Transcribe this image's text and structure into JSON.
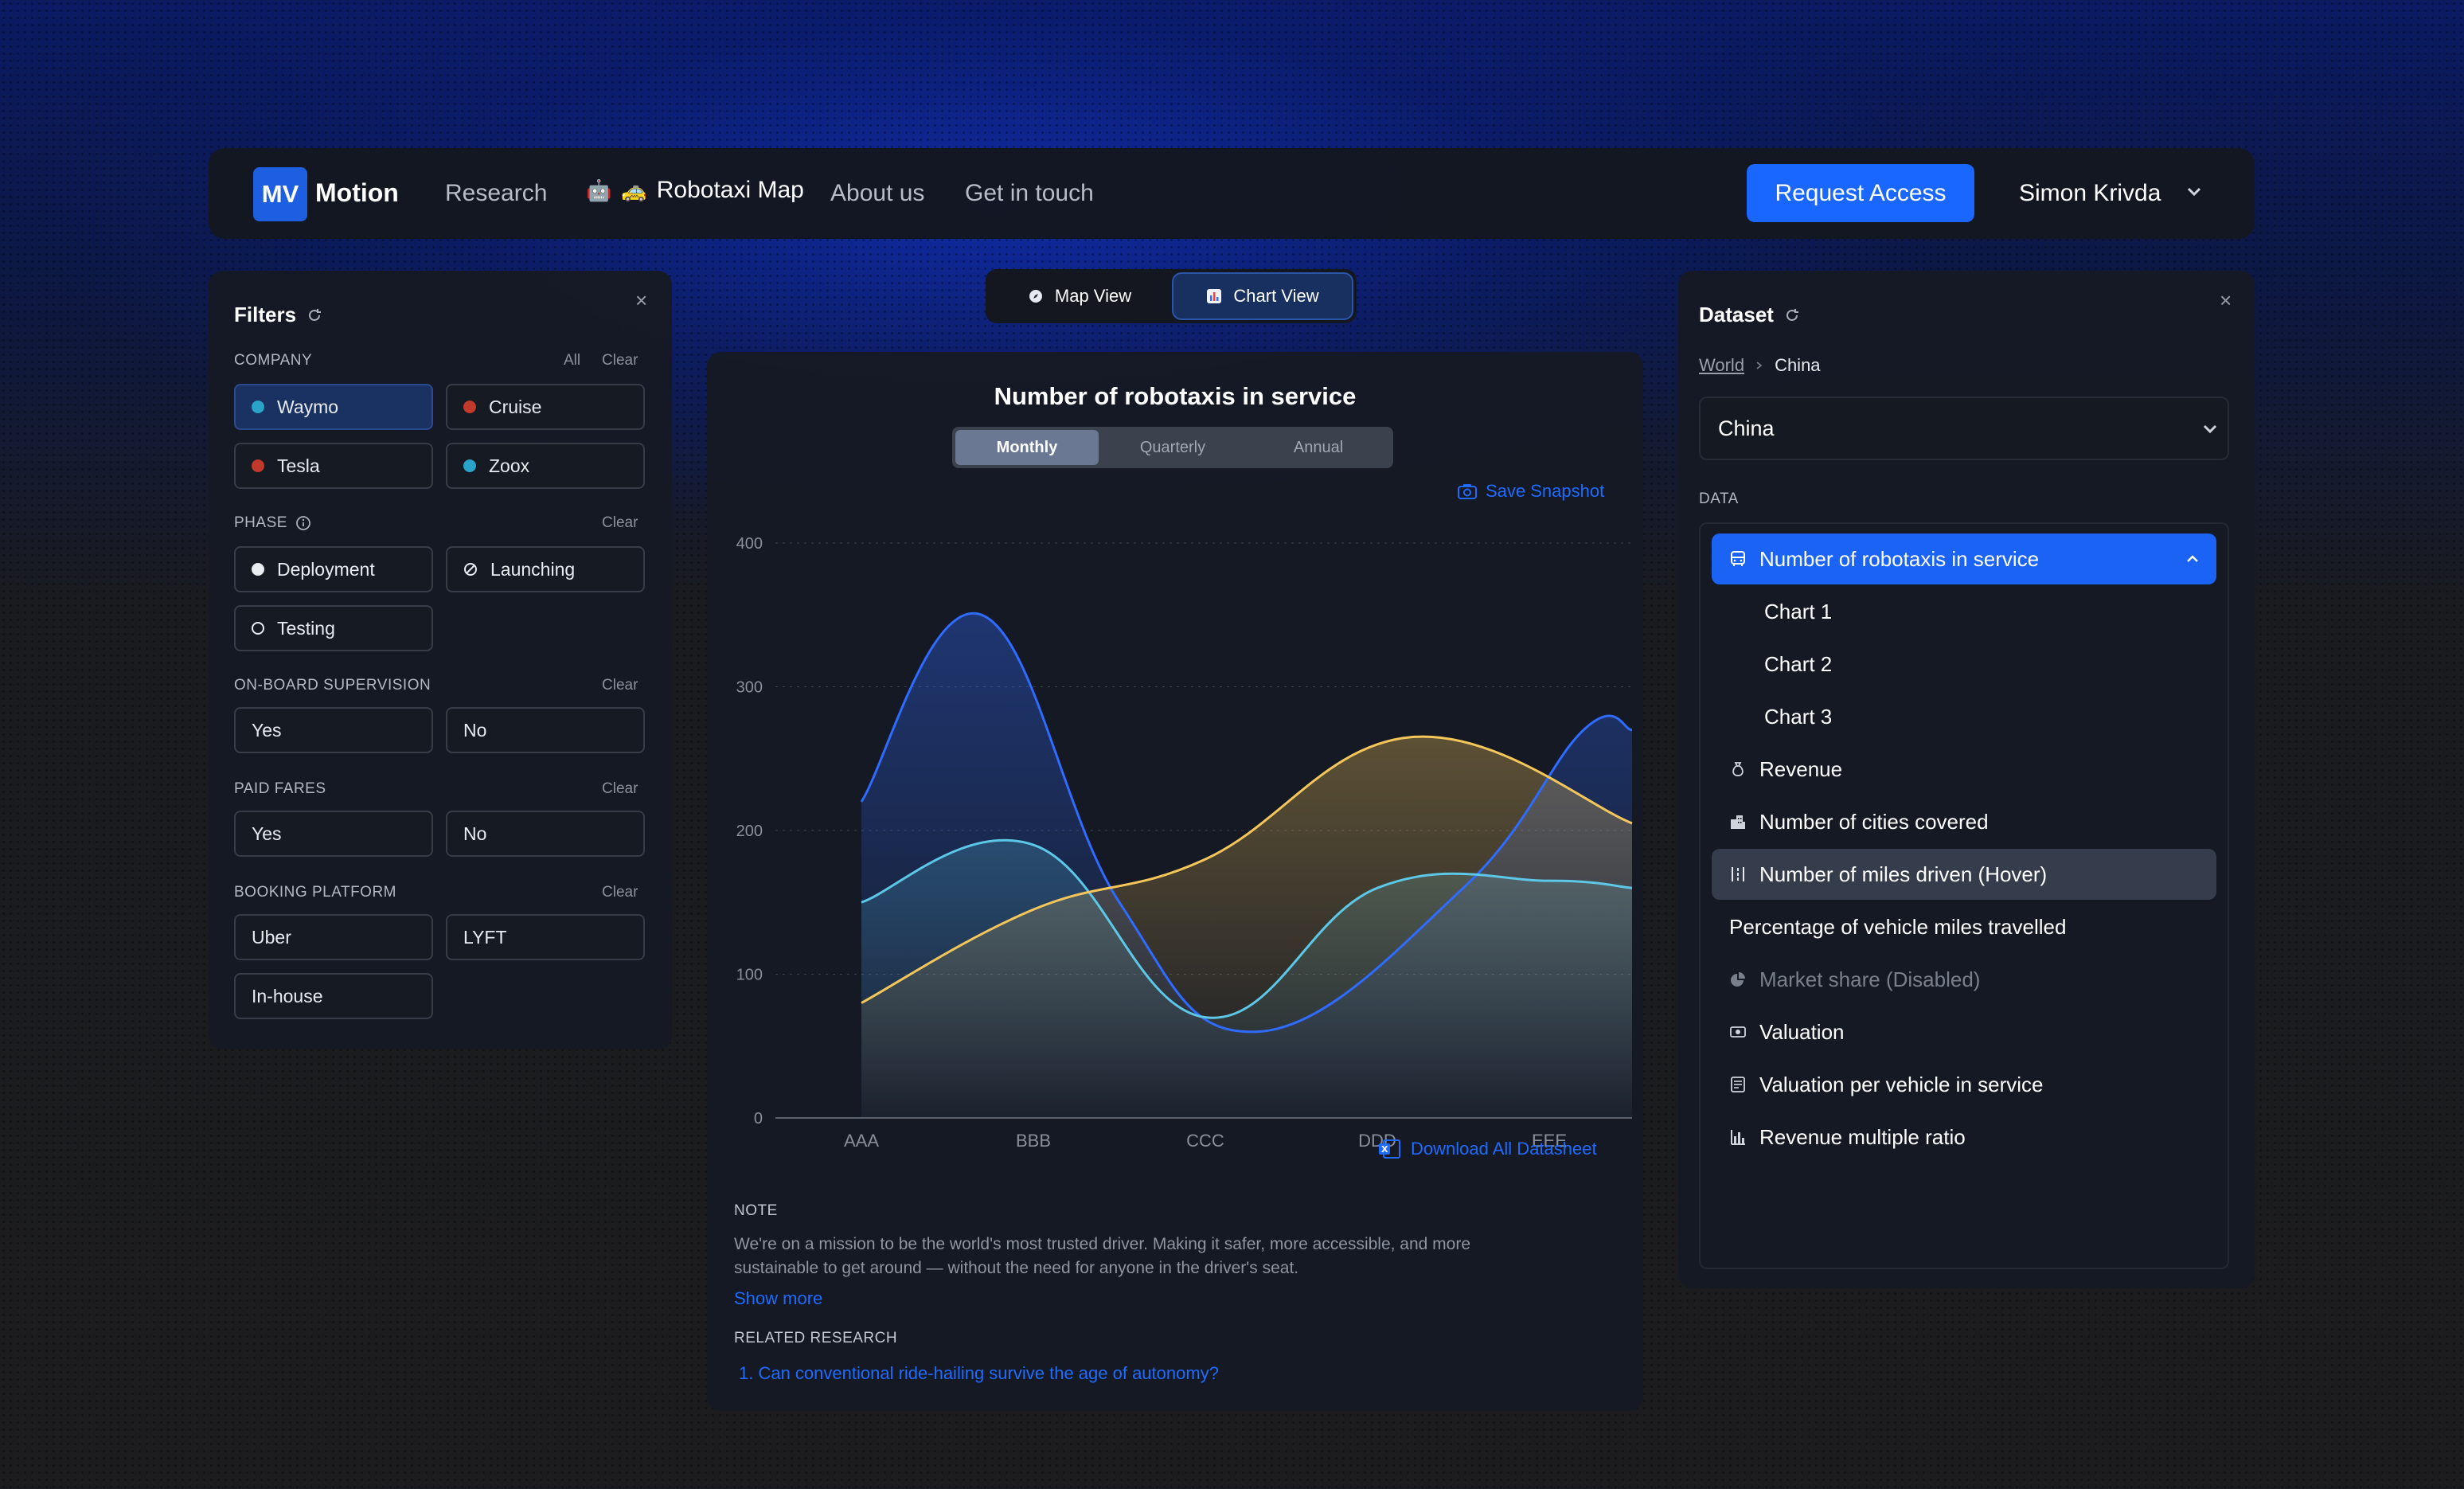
{
  "nav": {
    "logo_badge": "MV",
    "logo_text": "Motion",
    "links": [
      "Research",
      "Robotaxi Map",
      "About us",
      "Get in touch"
    ],
    "cta": "Request Access",
    "user": "Simon Krivda"
  },
  "filters": {
    "title": "Filters",
    "company": {
      "label": "COMPANY",
      "all": "All",
      "clear": "Clear",
      "options": [
        {
          "name": "Waymo",
          "color": "#2aa3c8",
          "selected": true
        },
        {
          "name": "Cruise",
          "color": "#c0392b"
        },
        {
          "name": "Tesla",
          "color": "#c0392b"
        },
        {
          "name": "Zoox",
          "color": "#2aa3c8"
        }
      ]
    },
    "phase": {
      "label": "PHASE",
      "clear": "Clear",
      "options": [
        "Deployment",
        "Launching",
        "Testing"
      ]
    },
    "supervision": {
      "label": "ON-BOARD SUPERVISION",
      "clear": "Clear",
      "options": [
        "Yes",
        "No"
      ]
    },
    "fares": {
      "label": "PAID FARES",
      "clear": "Clear",
      "options": [
        "Yes",
        "No"
      ]
    },
    "booking": {
      "label": "BOOKING PLATFORM",
      "clear": "Clear",
      "options": [
        "Uber",
        "LYFT",
        "In-house"
      ]
    }
  },
  "view_toggle": {
    "map": "Map View",
    "chart": "Chart View",
    "active": "chart"
  },
  "chart_panel": {
    "periods": [
      "Monthly",
      "Quarterly",
      "Annual"
    ],
    "active_period": "Monthly",
    "save_snapshot": "Save Snapshot",
    "download": "Download All Datasheet",
    "note_label": "NOTE",
    "note_text": "We're on a mission to be the world's most trusted driver. Making it safer, more accessible, and more sustainable to get around — without the need for anyone in the driver's seat.",
    "show_more": "Show more",
    "related_label": "RELATED RESEARCH",
    "related_item": "1.  Can conventional ride-hailing survive the age of autonomy?"
  },
  "chart_data": {
    "type": "area",
    "title": "Number of robotaxis in service",
    "categories": [
      "AAA",
      "BBB",
      "CCC",
      "DDD",
      "EEE"
    ],
    "yticks": [
      0,
      100,
      200,
      300,
      400
    ],
    "ylim": [
      0,
      400
    ],
    "grid": true,
    "series": [
      {
        "color": "#2f6bff",
        "x": [
          0,
          0.7,
          1.5,
          2.3,
          3.5,
          4.2,
          4.5
        ],
        "y": [
          220,
          350,
          150,
          60,
          160,
          270,
          270
        ]
      },
      {
        "color": "#5cc7e6",
        "x": [
          0,
          1.0,
          2.0,
          3.0,
          4.0,
          4.5
        ],
        "y": [
          150,
          190,
          70,
          160,
          165,
          160
        ]
      },
      {
        "color": "#f5c75a",
        "x": [
          0,
          1.0,
          2.0,
          3.2,
          4.5
        ],
        "y": [
          80,
          145,
          180,
          265,
          205
        ]
      }
    ]
  },
  "dataset": {
    "title": "Dataset",
    "breadcrumb": [
      "World",
      "China"
    ],
    "select_value": "China",
    "data_label": "DATA",
    "items": [
      {
        "label": "Number of robotaxis in service",
        "state": "active",
        "icon": "bus"
      },
      {
        "label": "Chart 1",
        "state": "sub"
      },
      {
        "label": "Chart 2",
        "state": "sub"
      },
      {
        "label": "Chart 3",
        "state": "sub"
      },
      {
        "label": "Revenue",
        "state": "normal",
        "icon": "moneybag"
      },
      {
        "label": "Number of cities covered",
        "state": "normal",
        "icon": "city"
      },
      {
        "label": "Number of  miles driven (Hover)",
        "state": "hover",
        "icon": "road"
      },
      {
        "label": "Percentage of  vehicle miles travelled",
        "state": "noicon"
      },
      {
        "label": "Market share (Disabled)",
        "state": "disabled",
        "icon": "pie"
      },
      {
        "label": "Valuation",
        "state": "normal",
        "icon": "cash"
      },
      {
        "label": "Valuation per vehicle in service",
        "state": "normal",
        "icon": "receipt"
      },
      {
        "label": "Revenue multiple ratio",
        "state": "normal",
        "icon": "bars"
      }
    ]
  }
}
